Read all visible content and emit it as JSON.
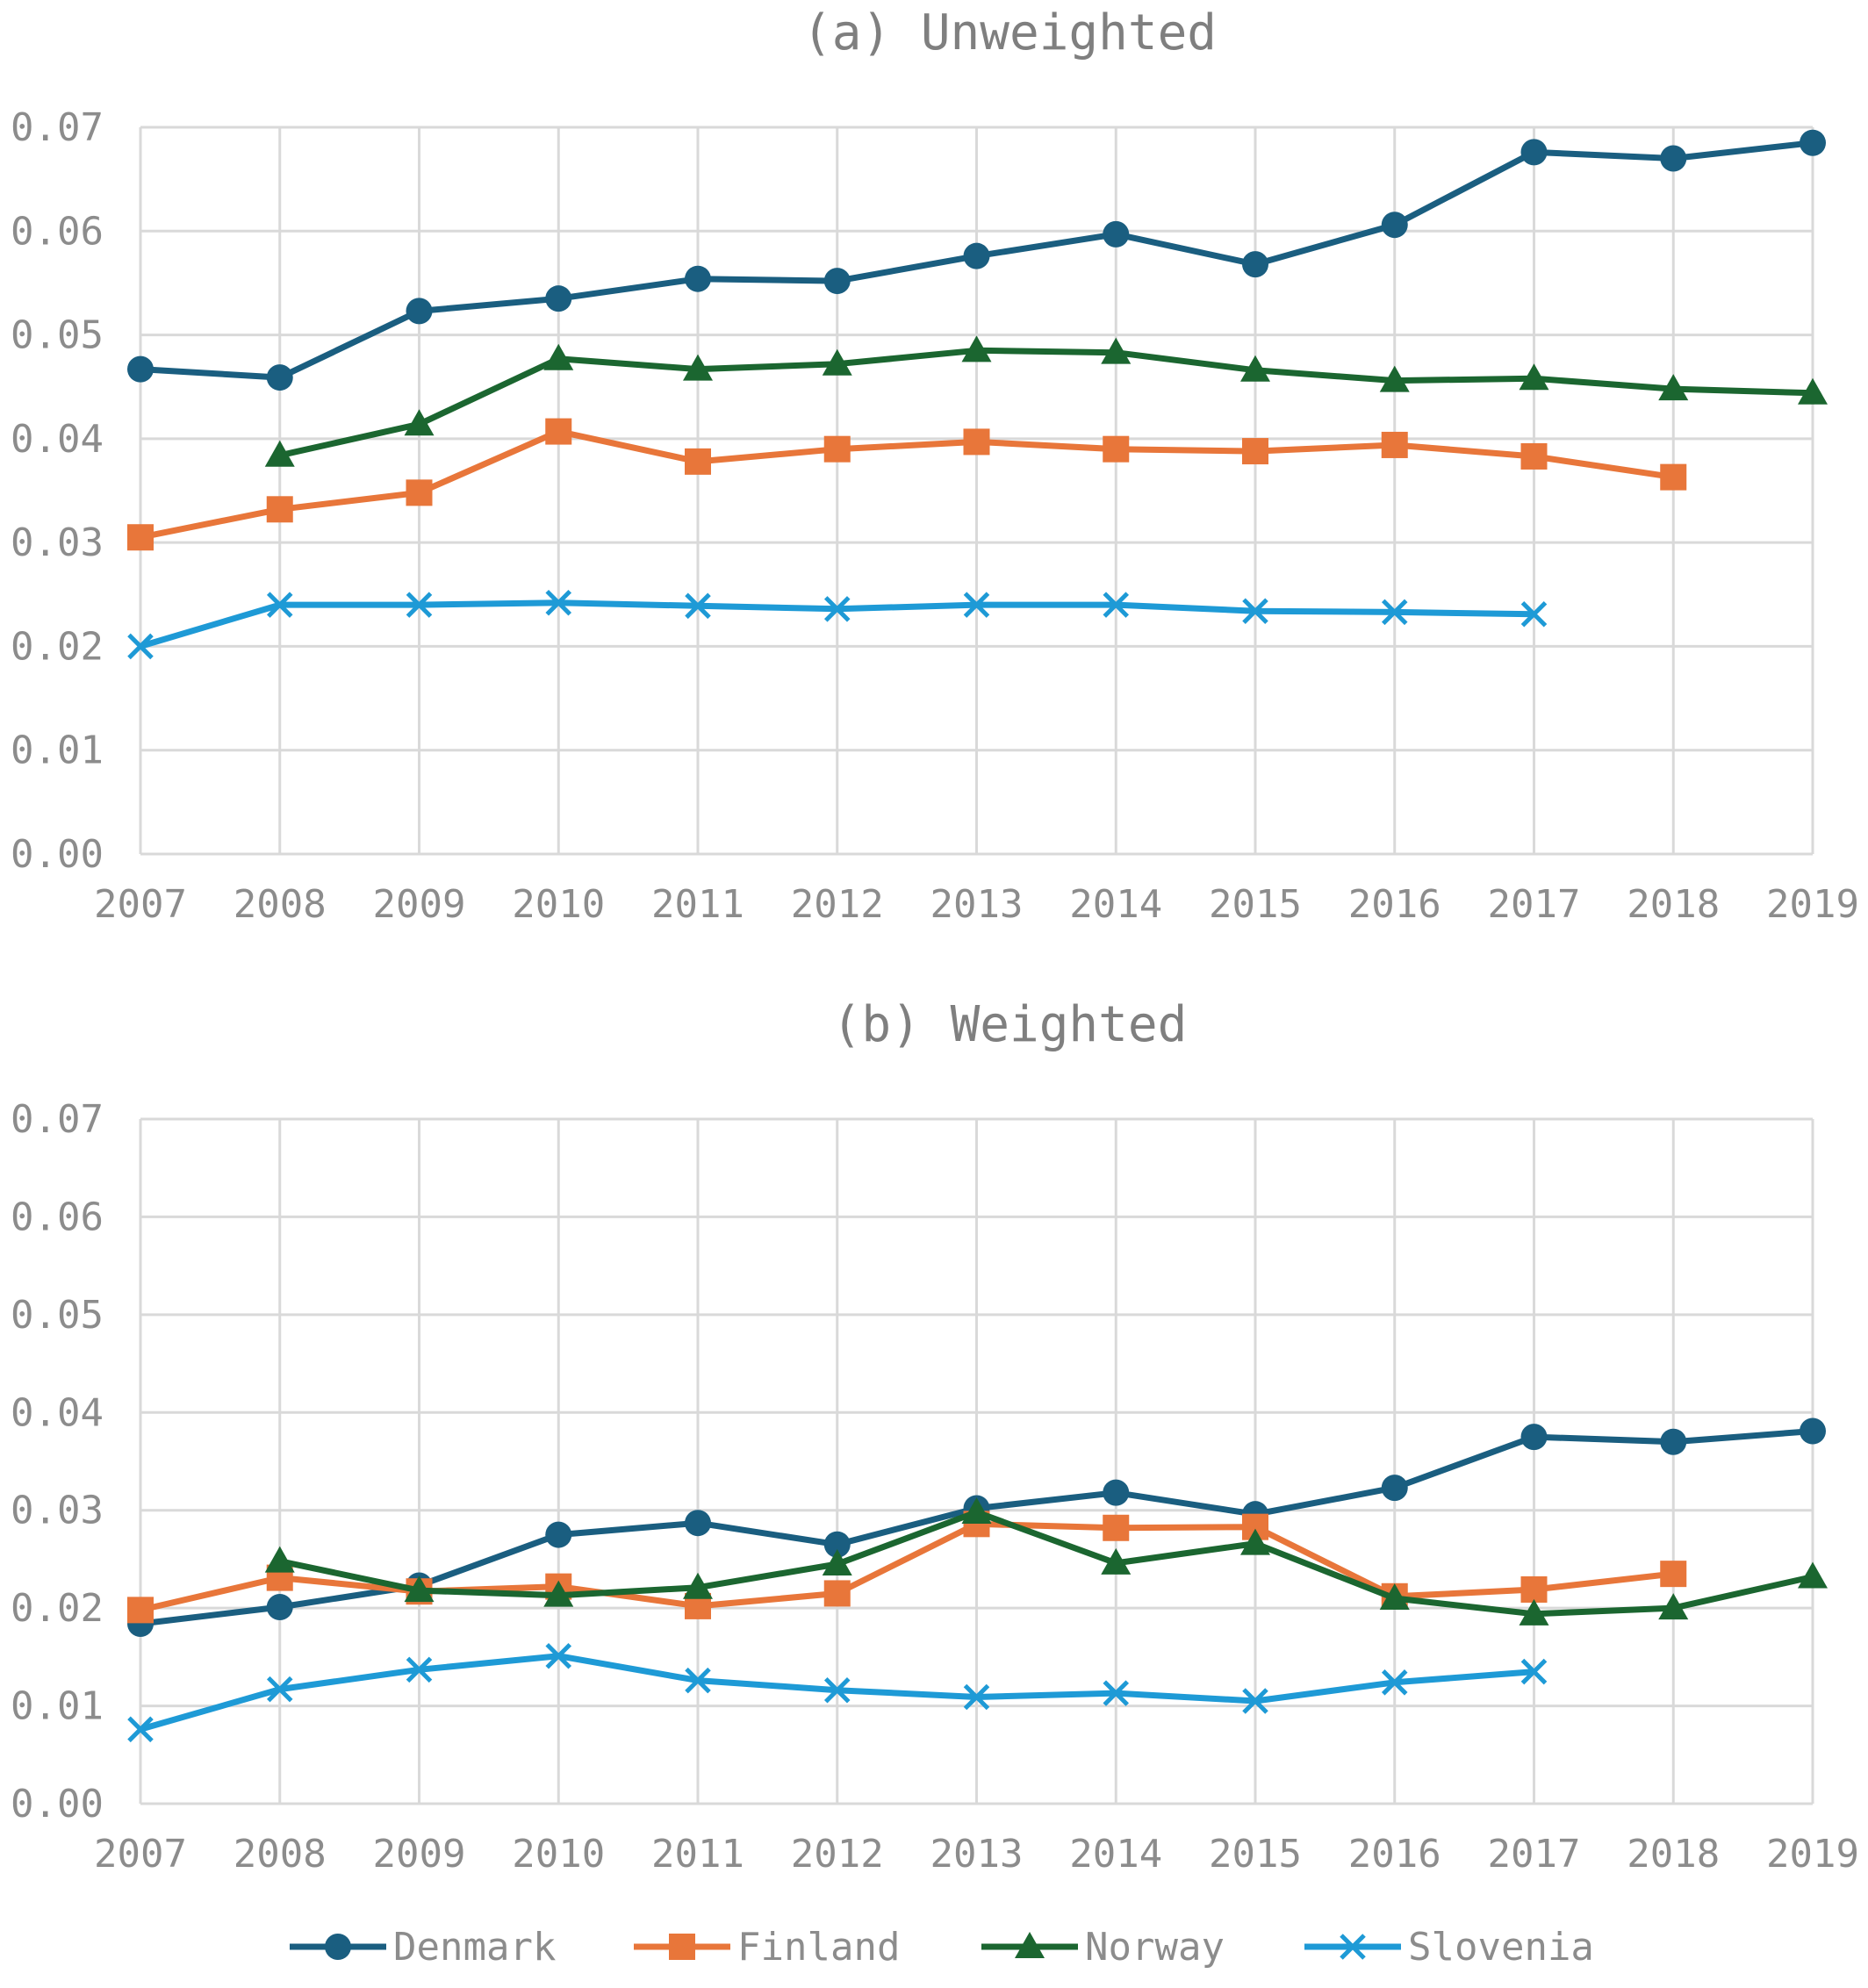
{
  "chart_data": [
    {
      "type": "line",
      "title": "(a) Unweighted",
      "x": [
        2007,
        2008,
        2009,
        2010,
        2011,
        2012,
        2013,
        2014,
        2015,
        2016,
        2017,
        2018,
        2019
      ],
      "ylim": [
        0,
        0.07
      ],
      "yticks": [
        "0.00",
        "0.01",
        "0.02",
        "0.03",
        "0.04",
        "0.05",
        "0.06",
        "0.07"
      ],
      "grid": true,
      "series": [
        {
          "name": "Denmark",
          "values": [
            0.0467,
            0.0459,
            0.0523,
            0.0535,
            0.0554,
            0.0552,
            0.0576,
            0.0597,
            0.0568,
            0.0606,
            0.0676,
            0.067,
            0.0685
          ]
        },
        {
          "name": "Finland",
          "values": [
            0.0305,
            0.0332,
            0.0348,
            0.0407,
            0.0378,
            0.039,
            0.0397,
            0.039,
            0.0388,
            0.0394,
            0.0383,
            0.0363,
            null
          ]
        },
        {
          "name": "Norway",
          "values": [
            null,
            0.0384,
            0.0414,
            0.0477,
            0.0467,
            0.0472,
            0.0485,
            0.0483,
            0.0466,
            0.0456,
            0.0458,
            0.0448,
            0.0444
          ]
        },
        {
          "name": "Slovenia",
          "values": [
            0.02,
            0.024,
            0.024,
            0.0242,
            0.0239,
            0.0236,
            0.024,
            0.024,
            0.0234,
            0.0233,
            0.0231,
            null,
            null
          ]
        }
      ]
    },
    {
      "type": "line",
      "title": "(b) Weighted",
      "x": [
        2007,
        2008,
        2009,
        2010,
        2011,
        2012,
        2013,
        2014,
        2015,
        2016,
        2017,
        2018,
        2019
      ],
      "ylim": [
        0,
        0.07
      ],
      "yticks": [
        "0.00",
        "0.01",
        "0.02",
        "0.03",
        "0.04",
        "0.05",
        "0.06",
        "0.07"
      ],
      "grid": true,
      "series": [
        {
          "name": "Denmark",
          "values": [
            0.0184,
            0.0201,
            0.0223,
            0.0275,
            0.0287,
            0.0265,
            0.0302,
            0.0318,
            0.0296,
            0.0323,
            0.0375,
            0.037,
            0.0381
          ]
        },
        {
          "name": "Finland",
          "values": [
            0.0198,
            0.0231,
            0.0217,
            0.0222,
            0.0202,
            0.0215,
            0.0286,
            0.0282,
            0.0283,
            0.0212,
            0.0219,
            0.0235,
            null
          ]
        },
        {
          "name": "Norway",
          "values": [
            null,
            0.0248,
            0.0218,
            0.0213,
            0.0221,
            0.0245,
            0.0298,
            0.0246,
            0.0266,
            0.021,
            0.0194,
            0.02,
            0.0232
          ]
        },
        {
          "name": "Slovenia",
          "values": [
            0.0076,
            0.0117,
            0.0137,
            0.0151,
            0.0126,
            0.0116,
            0.0109,
            0.0113,
            0.0105,
            0.0124,
            0.0135,
            null,
            null
          ]
        }
      ]
    }
  ],
  "legend": {
    "placement": "bottom",
    "items": [
      {
        "name": "Denmark",
        "color": "#1a5e80",
        "marker": "circle"
      },
      {
        "name": "Finland",
        "color": "#e8763a",
        "marker": "square"
      },
      {
        "name": "Norway",
        "color": "#1b6630",
        "marker": "triangle"
      },
      {
        "name": "Slovenia",
        "color": "#1e9ad6",
        "marker": "x"
      }
    ]
  }
}
